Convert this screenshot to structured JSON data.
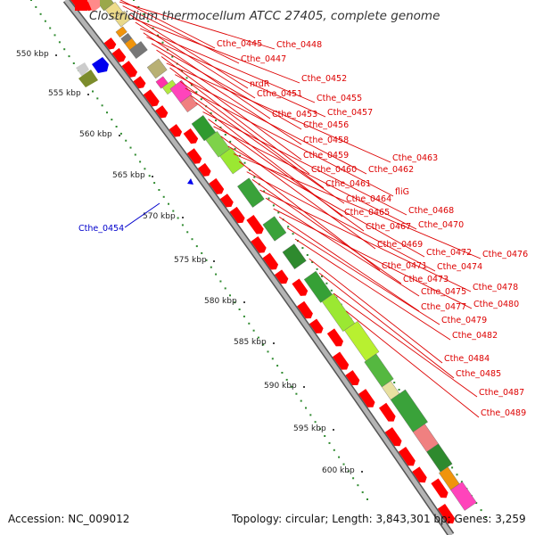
{
  "title": "Clostridium thermocellum ATCC 27405, complete genome",
  "footer": {
    "accession": "Accession: NC_009012",
    "topology": "Topology: circular; Length: 3,843,301 bp; Genes: 3,259"
  },
  "colors": {
    "gene_label": "#dd0000",
    "highlight_label": "#0000cc",
    "backbone": "#b4b4b4",
    "backbone_edge": "#555555",
    "scale_dots": "#2f8a2f",
    "cds_forward": "#ff0000",
    "cds_reverse": "#0000ee"
  },
  "ruler_labels": [
    "550 kbp",
    "555 kbp",
    "560 kbp",
    "565 kbp",
    "570 kbp",
    "575 kbp",
    "580 kbp",
    "585 kbp",
    "590 kbp",
    "595 kbp",
    "600 kbp"
  ],
  "gene_labels": [
    "Cthe_0445",
    "Cthe_0448",
    "Cthe_0447",
    "nrdR",
    "Cthe_0452",
    "Cthe_0451",
    "Cthe_0455",
    "Cthe_0453",
    "Cthe_0457",
    "Cthe_0456",
    "Cthe_0458",
    "Cthe_0459",
    "Cthe_0463",
    "Cthe_0460",
    "Cthe_0462",
    "Cthe_0461",
    "fliG",
    "Cthe_0464",
    "Cthe_0465",
    "Cthe_0468",
    "Cthe_0467",
    "Cthe_0470",
    "Cthe_0469",
    "Cthe_0472",
    "Cthe_0476",
    "Cthe_0471",
    "Cthe_0474",
    "Cthe_0473",
    "Cthe_0478",
    "Cthe_0475",
    "Cthe_0480",
    "Cthe_0477",
    "Cthe_0479",
    "Cthe_0482",
    "Cthe_0484",
    "Cthe_0485",
    "Cthe_0487",
    "Cthe_0489"
  ],
  "highlight_label": "Cthe_0454"
}
